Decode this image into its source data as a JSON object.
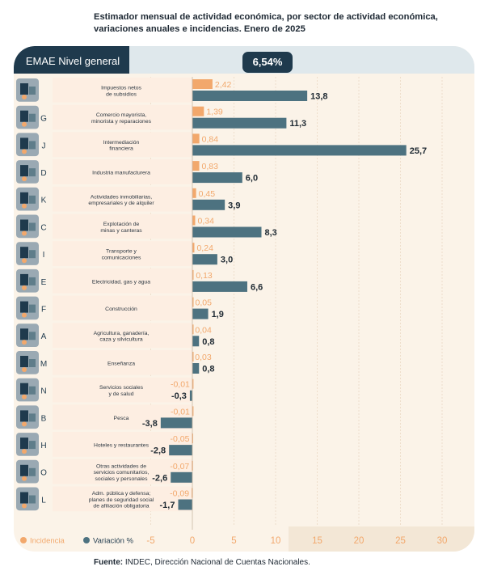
{
  "title": "Estimador mensual de actividad económica, por sector de actividad económica, variaciones anuales e incidencias. Enero de 2025",
  "header": {
    "label": "EMAE Nivel general",
    "value": "6,54%"
  },
  "legend": {
    "incidence": "Incidencia",
    "variation": "Variación %"
  },
  "source": {
    "prefix": "Fuente:",
    "text": " INDEC, Dirección Nacional de Cuentas Nacionales."
  },
  "colors": {
    "incidence": "#f2a86c",
    "variation": "#4d7280",
    "dark": "#1f3a4d",
    "panel": "#fbf3e8",
    "light_band": "#dfe8ec",
    "row_bg": "#fdeee2"
  },
  "chart_data": {
    "type": "bar",
    "orientation": "horizontal",
    "xlim": [
      -5,
      30
    ],
    "xticks": [
      "-5",
      "0",
      "5",
      "10",
      "15",
      "20",
      "25",
      "30"
    ],
    "xtick_values": [
      -5,
      0,
      5,
      10,
      15,
      20,
      25,
      30
    ],
    "rows": [
      {
        "letter": "",
        "icon": "tax-building-icon",
        "name": "Impuestos netos\nde subsidios",
        "incidence": 2.42,
        "incidence_label": "2,42",
        "variation": 13.8,
        "variation_label": "13,8"
      },
      {
        "letter": "G",
        "icon": "shop-icon",
        "name": "Comercio mayorista,\nminorista y reparaciones",
        "incidence": 1.39,
        "incidence_label": "1,39",
        "variation": 11.3,
        "variation_label": "11,3"
      },
      {
        "letter": "J",
        "icon": "bank-icon",
        "name": "Intermediación\nfinanciera",
        "incidence": 0.84,
        "incidence_label": "0,84",
        "variation": 25.7,
        "variation_label": "25,7"
      },
      {
        "letter": "D",
        "icon": "gears-icon",
        "name": "Industria manufacturera",
        "incidence": 0.83,
        "incidence_label": "0,83",
        "variation": 6.0,
        "variation_label": "6,0"
      },
      {
        "letter": "K",
        "icon": "house-icon",
        "name": "Actividades inmobiliarias,\nempresariales y de alquiler",
        "incidence": 0.45,
        "incidence_label": "0,45",
        "variation": 3.9,
        "variation_label": "3,9"
      },
      {
        "letter": "C",
        "icon": "oil-pump-icon",
        "name": "Explotación de\nminas y canteras",
        "incidence": 0.34,
        "incidence_label": "0,34",
        "variation": 8.3,
        "variation_label": "8,3"
      },
      {
        "letter": "I",
        "icon": "truck-icon",
        "name": "Transporte y\ncomunicaciones",
        "incidence": 0.24,
        "incidence_label": "0,24",
        "variation": 3.0,
        "variation_label": "3,0"
      },
      {
        "letter": "E",
        "icon": "power-plant-icon",
        "name": "Electricidad, gas y agua",
        "incidence": 0.13,
        "incidence_label": "0,13",
        "variation": 6.6,
        "variation_label": "6,6"
      },
      {
        "letter": "F",
        "icon": "construction-icon",
        "name": "Construcción",
        "incidence": 0.05,
        "incidence_label": "0,05",
        "variation": 1.9,
        "variation_label": "1,9"
      },
      {
        "letter": "A",
        "icon": "tractor-icon",
        "name": "Agricultura, ganadería,\ncaza y silvicultura",
        "incidence": 0.04,
        "incidence_label": "0,04",
        "variation": 0.8,
        "variation_label": "0,8"
      },
      {
        "letter": "M",
        "icon": "school-icon",
        "name": "Enseñanza",
        "incidence": 0.03,
        "incidence_label": "0,03",
        "variation": 0.8,
        "variation_label": "0,8"
      },
      {
        "letter": "N",
        "icon": "hospital-icon",
        "name": "Servicios sociales\ny de salud",
        "incidence": -0.01,
        "incidence_label": "-0,01",
        "variation": -0.3,
        "variation_label": "-0,3"
      },
      {
        "letter": "B",
        "icon": "fish-icon",
        "name": "Pesca",
        "incidence": -0.01,
        "incidence_label": "-0,01",
        "variation": -3.8,
        "variation_label": "-3,8"
      },
      {
        "letter": "H",
        "icon": "hotel-icon",
        "name": "Hoteles y restaurantes",
        "incidence": -0.05,
        "incidence_label": "-0,05",
        "variation": -2.8,
        "variation_label": "-2,8"
      },
      {
        "letter": "O",
        "icon": "community-icon",
        "name": "Otras actividades de\nservicios comunitarios,\nsociales y personales",
        "incidence": -0.07,
        "incidence_label": "-0,07",
        "variation": -2.6,
        "variation_label": "-2,6"
      },
      {
        "letter": "L",
        "icon": "government-icon",
        "name": "Adm. pública y defensa;\nplanes de seguridad social\nde afiliación obligatoria",
        "incidence": -0.09,
        "incidence_label": "-0,09",
        "variation": -1.7,
        "variation_label": "-1,7"
      }
    ]
  }
}
